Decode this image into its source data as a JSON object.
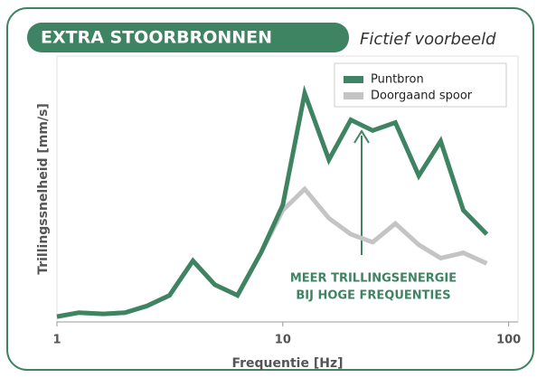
{
  "chart_data": {
    "type": "line",
    "title": "EXTRA STOORBRONNEN",
    "subtitle": "Fictief voorbeeld",
    "x_label": "Frequentie [Hz]",
    "y_label": "Trillingssnelheid [mm/s]",
    "annotation": [
      "MEER TRILLINGSENERGIE",
      "BIJ HOGE FREQUENTIES"
    ],
    "x": [
      1,
      1.25,
      1.6,
      2,
      2.5,
      3.15,
      4,
      5,
      6.3,
      8,
      10,
      12.5,
      16,
      20,
      25,
      31.5,
      40,
      50,
      63,
      80
    ],
    "series": [
      {
        "name": "Doorgaand spoor",
        "color": "#c4c4c4",
        "values": [
          2,
          3.5,
          3,
          3.5,
          6,
          10,
          23,
          14,
          10,
          26,
          42,
          50,
          39,
          33,
          30,
          37,
          29,
          24,
          26,
          22
        ]
      },
      {
        "name": "Puntbron",
        "color": "#3f8462",
        "values": [
          2,
          3.5,
          3,
          3.5,
          6,
          10,
          23,
          14,
          10,
          26,
          44,
          86,
          61,
          76,
          72,
          75,
          55,
          68,
          42,
          33
        ]
      }
    ],
    "xlim": [
      1,
      110
    ],
    "xticks": [
      1,
      10,
      100
    ],
    "xscale": "log",
    "ylim": [
      0,
      100
    ],
    "legend": "upper right"
  }
}
